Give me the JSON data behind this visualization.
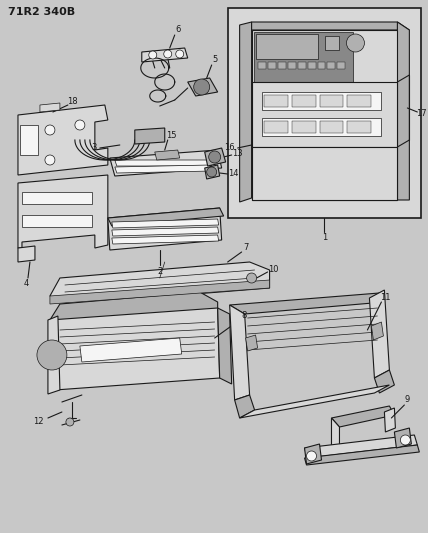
{
  "title": "71R2 340B",
  "bg": "#c8c8c8",
  "lc": "#1a1a1a",
  "white": "#f5f5f5",
  "lgray": "#d8d8d8",
  "mgray": "#b0b0b0",
  "dgray": "#888888",
  "fig_w": 4.28,
  "fig_h": 5.33,
  "dpi": 100
}
